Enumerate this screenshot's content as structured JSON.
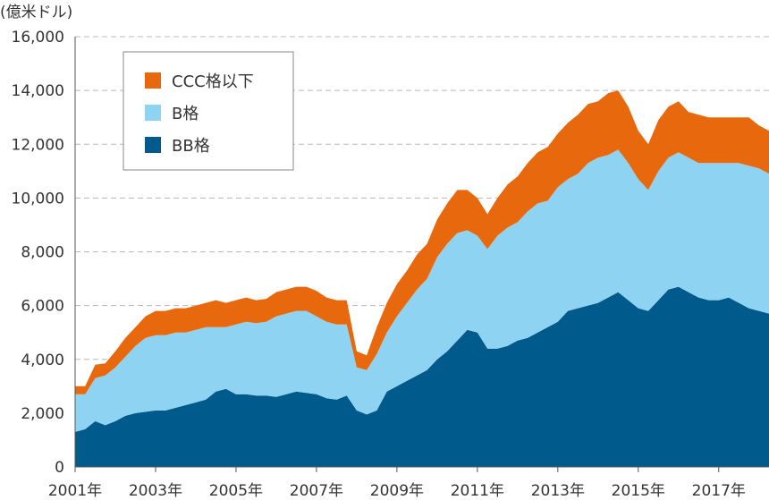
{
  "chart_data": {
    "type": "area",
    "stacked": true,
    "title": "",
    "ylabel": "(億米ドル)",
    "xlabel": "",
    "ylim": [
      0,
      16000
    ],
    "yticks": [
      0,
      2000,
      4000,
      6000,
      8000,
      10000,
      12000,
      14000,
      16000
    ],
    "ytick_labels": [
      "0",
      "2,000",
      "4,000",
      "6,000",
      "8,000",
      "10,000",
      "12,000",
      "14,000",
      "16,000"
    ],
    "xlim": [
      2001.0,
      2018.25
    ],
    "xticks": [
      2001,
      2003,
      2005,
      2007,
      2009,
      2011,
      2013,
      2015,
      2017
    ],
    "xtick_labels": [
      "2001年",
      "2003年",
      "2005年",
      "2007年",
      "2009年",
      "2011年",
      "2013年",
      "2015年",
      "2017年"
    ],
    "grid": true,
    "legend_position": "top-left",
    "x": [
      2001.0,
      2001.25,
      2001.5,
      2001.75,
      2002.0,
      2002.25,
      2002.5,
      2002.75,
      2003.0,
      2003.25,
      2003.5,
      2003.75,
      2004.0,
      2004.25,
      2004.5,
      2004.75,
      2005.0,
      2005.25,
      2005.5,
      2005.75,
      2006.0,
      2006.25,
      2006.5,
      2006.75,
      2007.0,
      2007.25,
      2007.5,
      2007.75,
      2008.0,
      2008.25,
      2008.5,
      2008.75,
      2009.0,
      2009.25,
      2009.5,
      2009.75,
      2010.0,
      2010.25,
      2010.5,
      2010.75,
      2011.0,
      2011.25,
      2011.5,
      2011.75,
      2012.0,
      2012.25,
      2012.5,
      2012.75,
      2013.0,
      2013.25,
      2013.5,
      2013.75,
      2014.0,
      2014.25,
      2014.5,
      2014.75,
      2015.0,
      2015.25,
      2015.5,
      2015.75,
      2016.0,
      2016.25,
      2016.5,
      2016.75,
      2017.0,
      2017.25,
      2017.5,
      2017.75,
      2018.0,
      2018.25
    ],
    "series": [
      {
        "name": "BB格",
        "color": "#005a8c",
        "values": [
          1300,
          1400,
          1700,
          1550,
          1700,
          1900,
          2000,
          2050,
          2100,
          2100,
          2200,
          2300,
          2400,
          2500,
          2800,
          2900,
          2700,
          2700,
          2650,
          2650,
          2600,
          2700,
          2800,
          2750,
          2700,
          2550,
          2500,
          2650,
          2100,
          1950,
          2100,
          2800,
          3000,
          3200,
          3400,
          3600,
          4000,
          4300,
          4700,
          5100,
          5000,
          4400,
          4400,
          4500,
          4700,
          4800,
          5000,
          5200,
          5400,
          5800,
          5900,
          6000,
          6100,
          6300,
          6500,
          6200,
          5900,
          5800,
          6200,
          6600,
          6700,
          6500,
          6300,
          6200,
          6200,
          6300,
          6100,
          5900,
          5800,
          5700
        ]
      },
      {
        "name": "B格",
        "color": "#8fd3f2",
        "values": [
          1400,
          1300,
          1600,
          1850,
          2000,
          2200,
          2500,
          2750,
          2800,
          2800,
          2800,
          2700,
          2700,
          2700,
          2400,
          2300,
          2600,
          2700,
          2700,
          2750,
          3000,
          3000,
          3000,
          3050,
          2900,
          2850,
          2800,
          2650,
          1600,
          1650,
          2100,
          2200,
          2600,
          2900,
          3200,
          3400,
          3800,
          4000,
          4000,
          3700,
          3600,
          3700,
          4200,
          4400,
          4400,
          4700,
          4800,
          4700,
          5000,
          4900,
          5000,
          5300,
          5400,
          5300,
          5300,
          5100,
          4800,
          4500,
          4800,
          4900,
          5000,
          5000,
          5000,
          5100,
          5100,
          5000,
          5200,
          5300,
          5300,
          5200
        ]
      },
      {
        "name": "CCC格以下",
        "color": "#e8690d",
        "values": [
          300,
          300,
          500,
          450,
          600,
          700,
          700,
          800,
          900,
          900,
          900,
          900,
          900,
          900,
          1000,
          900,
          900,
          900,
          850,
          850,
          900,
          900,
          900,
          900,
          950,
          900,
          900,
          900,
          600,
          550,
          1000,
          1100,
          1200,
          1200,
          1300,
          1300,
          1400,
          1500,
          1600,
          1500,
          1400,
          1300,
          1400,
          1600,
          1700,
          1800,
          1900,
          2000,
          2000,
          2100,
          2200,
          2200,
          2100,
          2300,
          2200,
          2100,
          1800,
          1700,
          1900,
          1900,
          1900,
          1700,
          1800,
          1700,
          1700,
          1700,
          1700,
          1800,
          1600,
          1600
        ]
      }
    ],
    "legend": [
      {
        "name": "CCC格以下",
        "color": "#e8690d"
      },
      {
        "name": "B格",
        "color": "#8fd3f2"
      },
      {
        "name": "BB格",
        "color": "#005a8c"
      }
    ]
  }
}
